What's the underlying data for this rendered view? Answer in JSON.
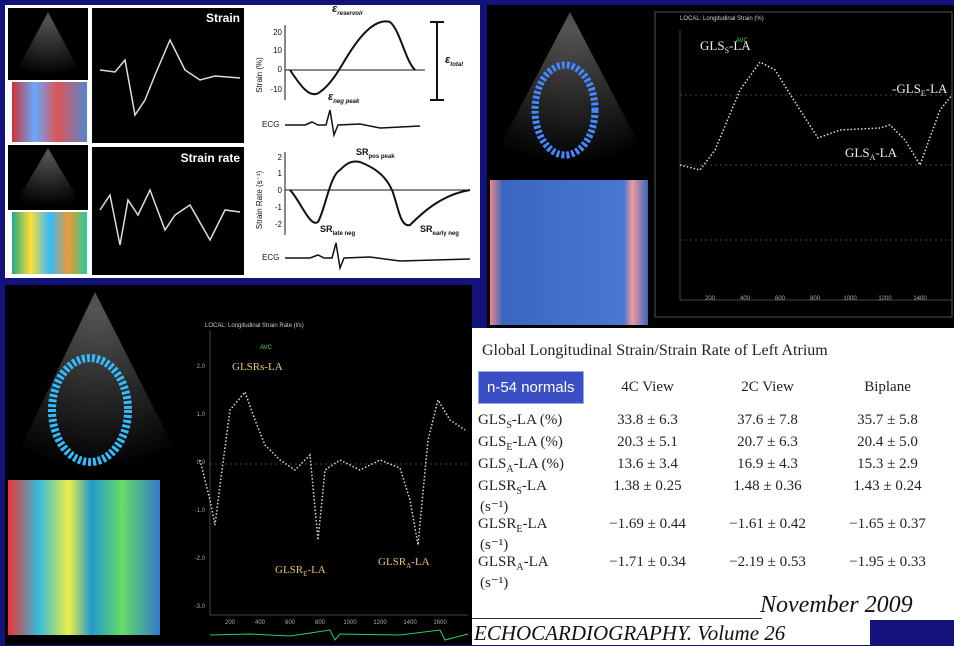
{
  "top_left": {
    "strain_label": "Strain",
    "strain_rate_label": "Strain rate",
    "diagram": {
      "strain_axis": "Strain (%)",
      "strain_ticks": [
        "20",
        "10",
        "0",
        "-10"
      ],
      "e_reservoir": {
        "base": "ε",
        "sub": "reservoir"
      },
      "e_total": {
        "base": "ε",
        "sub": "total"
      },
      "e_neg": {
        "base": "ε",
        "sub": "neg peak"
      },
      "ecg_1": "ECG",
      "rate_axis": "Strain Rate (s⁻¹)",
      "rate_ticks": [
        "2",
        "1",
        "0",
        "-1",
        "-2"
      ],
      "sr_peak": {
        "base": "SR",
        "sub": "pos peak"
      },
      "sr_late": {
        "base": "SR",
        "sub": "late neg"
      },
      "sr_early": {
        "base": "SR",
        "sub": "early neg"
      },
      "ecg_2": "ECG"
    }
  },
  "top_right": {
    "plot_title": "LOCAL: Longitudinal Strain (%)",
    "avc": "AVC",
    "gls_s": {
      "base": "GLS",
      "sub": "S",
      "rest": "-LA"
    },
    "gls_e": {
      "base": "-GLS",
      "sub": "E",
      "rest": "-LA"
    },
    "gls_a": {
      "base": "GLS",
      "sub": "A",
      "rest": "-LA"
    },
    "x_ticks": [
      "200",
      "400",
      "600",
      "800",
      "1000",
      "1200",
      "1400"
    ]
  },
  "bottom_left": {
    "plot_title": "LOCAL: Longitudinal Strain Rate (l/s)",
    "avc": "AVC",
    "glsr_s": "GLSRs-LA",
    "glsr_e": {
      "base": "GLSR",
      "sub": "E",
      "rest": "-LA"
    },
    "glsr_a": {
      "base": "GLSR",
      "sub": "A",
      "rest": "-LA"
    },
    "y_ticks": [
      "2.0",
      "1.0",
      "0.0",
      "-1.0",
      "-2.0",
      "-3.0"
    ],
    "x_ticks": [
      "200",
      "400",
      "600",
      "800",
      "1000",
      "1200",
      "1400",
      "1600"
    ]
  },
  "table": {
    "title": "Global Longitudinal Strain/Strain Rate of Left Atrium",
    "badge": "n-54 normals",
    "columns": [
      "4C View",
      "2C View",
      "Biplane"
    ],
    "rows": [
      {
        "label": {
          "base": "GLS",
          "sub": "S",
          "rest": "-LA (%)"
        },
        "cells": [
          "33.8 ± 6.3",
          "37.6 ± 7.8",
          "35.7 ± 5.8"
        ]
      },
      {
        "label": {
          "base": "GLS",
          "sub": "E",
          "rest": "-LA (%)"
        },
        "cells": [
          "20.3 ± 5.1",
          "20.7 ± 6.3",
          "20.4 ± 5.0"
        ]
      },
      {
        "label": {
          "base": "GLS",
          "sub": "A",
          "rest": "-LA (%)"
        },
        "cells": [
          "13.6 ± 3.4",
          "16.9 ± 4.3",
          "15.3 ± 2.9"
        ]
      },
      {
        "label": {
          "base": "GLSR",
          "sub": "S",
          "rest": "-LA",
          "unit": "(s⁻¹)"
        },
        "cells": [
          "1.38 ± 0.25",
          "1.48 ± 0.36",
          "1.43 ± 0.24"
        ]
      },
      {
        "label": {
          "base": "GLSR",
          "sub": "E",
          "rest": "-LA",
          "unit": "(s⁻¹)"
        },
        "cells": [
          "−1.69 ± 0.44",
          "−1.61 ± 0.42",
          "−1.65 ± 0.37"
        ]
      },
      {
        "label": {
          "base": "GLSR",
          "sub": "A",
          "rest": "-LA",
          "unit": "(s⁻¹)"
        },
        "cells": [
          "−1.71 ± 0.34",
          "−2.19 ± 0.53",
          "−1.95 ± 0.33"
        ]
      }
    ]
  },
  "citation": {
    "date": "November 2009",
    "journal": "ECHOCARDIOGRAPHY. Volume 26"
  }
}
